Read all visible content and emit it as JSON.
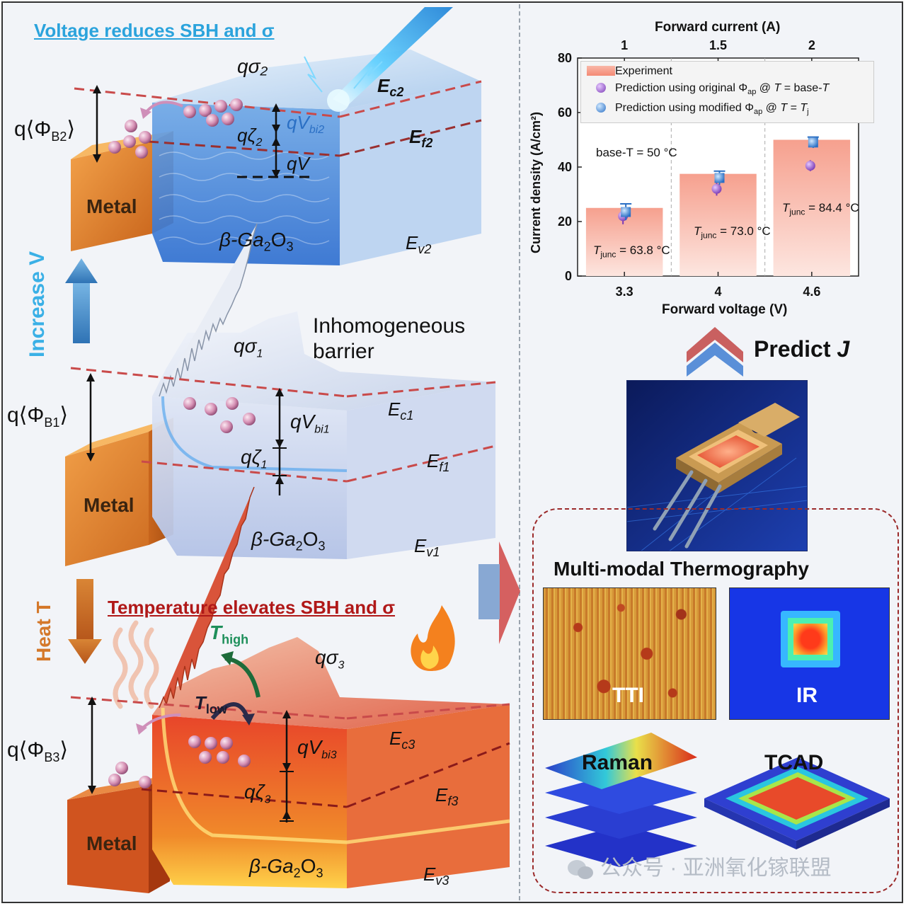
{
  "left_panel": {
    "top": {
      "title": "Voltage reduces SBH and σ",
      "sigma": "qσ₂",
      "phi": "q⟨Φ",
      "phi_sub": "B2",
      "phi_close": "⟩",
      "ec": "E",
      "ec_sub": "c2",
      "ef": "E",
      "ef_sub": "f2",
      "ev": "E",
      "ev_sub": "v2",
      "qvbi": "qV",
      "qvbi_sub": "bi2",
      "qzeta": "qζ",
      "qzeta_sub": "2",
      "qv": "qV",
      "metal": "Metal",
      "ga": "β-Ga",
      "ga_sub1": "2",
      "ga_o": "O",
      "ga_sub2": "3"
    },
    "arrow_up_label": "Increase V",
    "middle": {
      "barrier_label_1": "Inhomogeneous",
      "barrier_label_2": "barrier",
      "sigma": "qσ",
      "sigma_sub": "1",
      "phi": "q⟨Φ",
      "phi_sub": "B1",
      "phi_close": "⟩",
      "ec": "E",
      "ec_sub": "c1",
      "ef": "E",
      "ef_sub": "f1",
      "ev": "E",
      "ev_sub": "v1",
      "qvbi": "qV",
      "qvbi_sub": "bi1",
      "qzeta": "qζ",
      "qzeta_sub": "1",
      "metal": "Metal",
      "ga": "β-Ga",
      "ga_sub1": "2",
      "ga_o": "O",
      "ga_sub2": "3"
    },
    "arrow_down_label": "Heat T",
    "bottom": {
      "title": "Temperature elevates SBH and σ",
      "t_high": "T",
      "t_high_sub": "high",
      "t_low": "T",
      "t_low_sub": "low",
      "sigma": "qσ",
      "sigma_sub": "3",
      "phi": "q⟨Φ",
      "phi_sub": "B3",
      "phi_close": "⟩",
      "ec": "E",
      "ec_sub": "c3",
      "ef": "E",
      "ef_sub": "f3",
      "ev": "E",
      "ev_sub": "v3",
      "qvbi": "qV",
      "qvbi_sub": "bi3",
      "qzeta": "qζ",
      "qzeta_sub": "3",
      "metal": "Metal",
      "ga": "β-Ga",
      "ga_sub1": "2",
      "ga_o": "O",
      "ga_sub2": "3"
    }
  },
  "chart_data": {
    "type": "bar",
    "top_axis_label": "Forward current (A)",
    "top_ticks": [
      "1",
      "1.5",
      "2"
    ],
    "xlabel": "Forward voltage (V)",
    "ylabel": "Current density (A/cm²)",
    "categories": [
      "3.3",
      "4",
      "4.6"
    ],
    "ylim": [
      0,
      80
    ],
    "yticks": [
      0,
      20,
      40,
      60,
      80
    ],
    "series": [
      {
        "name": "Experiment",
        "values": [
          25,
          37.5,
          50
        ]
      },
      {
        "name": "Prediction using original Φap @ T = base-T",
        "values": [
          22,
          32,
          40.5
        ]
      },
      {
        "name": "Prediction using modified Φap @ T = Tj",
        "values": [
          23.5,
          36,
          49
        ]
      }
    ],
    "annotations": {
      "base_t": "base-T = 50 °C",
      "tjunc": [
        "T",
        "T",
        "T"
      ],
      "tjunc_sub": [
        "junc",
        "junc",
        "junc"
      ],
      "tjunc_vals": [
        " = 63.8 °C",
        " = 73.0 °C",
        " = 84.4 °C"
      ]
    },
    "legend_text": {
      "exp": "Experiment",
      "orig_a": "Prediction using original Φ",
      "orig_sub": "ap",
      "orig_b": " @ ",
      "orig_t": "T",
      "orig_c": " = base-",
      "orig_t2": "T",
      "mod_a": "Prediction using modified Φ",
      "mod_sub": "ap",
      "mod_b": " @ ",
      "mod_t": "T",
      "mod_c": " = ",
      "mod_t2": "T",
      "mod_sub2": "j"
    },
    "colors": {
      "bar": "#f6a08e",
      "orig": "#7b3bb5",
      "mod": "#2a6fc4"
    }
  },
  "right_panel": {
    "predict": "Predict ",
    "predict_j": "J",
    "thermo_title": "Multi-modal Thermography",
    "methods": [
      "TTI",
      "IR",
      "Raman",
      "TCAD"
    ]
  },
  "watermark": "公众号 · 亚洲氧化镓联盟"
}
